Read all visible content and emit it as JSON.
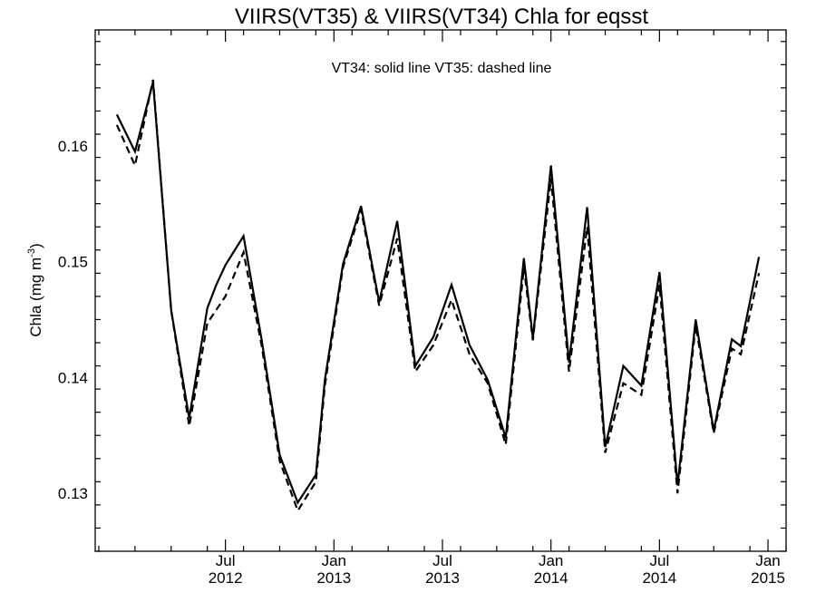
{
  "chart_data": {
    "type": "line",
    "title": "VIIRS(VT35) & VIIRS(VT34)  Chla for eqsst",
    "annotation": "VT34: solid line   VT35: dashed line",
    "ylabel_main": "Chla (mg m",
    "ylabel_sup": "-3",
    "ylabel_close": ")",
    "xlabel": "",
    "xlim": [
      "2012-01",
      "2015-03"
    ],
    "ylim": [
      0.125,
      0.17
    ],
    "yticks": [
      {
        "value": 0.13,
        "label": "0.13"
      },
      {
        "value": 0.14,
        "label": "0.14"
      },
      {
        "value": 0.15,
        "label": "0.15"
      },
      {
        "value": 0.16,
        "label": "0.16"
      }
    ],
    "xticks": [
      {
        "month_index": 6,
        "label1": "Jul",
        "label2": "2012"
      },
      {
        "month_index": 12,
        "label1": "Jan",
        "label2": "2013"
      },
      {
        "month_index": 18,
        "label1": "Jul",
        "label2": "2013"
      },
      {
        "month_index": 24,
        "label1": "Jan",
        "label2": "2014"
      },
      {
        "month_index": 30,
        "label1": "Jul",
        "label2": "2014"
      },
      {
        "month_index": 36,
        "label1": "Jan",
        "label2": "2015"
      }
    ],
    "grid": false,
    "series": [
      {
        "name": "VT34",
        "style": "solid",
        "color": "#000000",
        "points": [
          [
            0.0,
            0.1627
          ],
          [
            1.0,
            0.1595
          ],
          [
            2.0,
            0.1655
          ],
          [
            3.0,
            0.1458
          ],
          [
            4.0,
            0.1365
          ],
          [
            5.0,
            0.146
          ],
          [
            5.5,
            0.148
          ],
          [
            6.0,
            0.1497
          ],
          [
            7.0,
            0.1522
          ],
          [
            8.0,
            0.1433
          ],
          [
            9.0,
            0.1333
          ],
          [
            10.0,
            0.1292
          ],
          [
            11.0,
            0.1316
          ],
          [
            11.5,
            0.1398
          ],
          [
            12.5,
            0.1498
          ],
          [
            13.5,
            0.1548
          ],
          [
            14.5,
            0.1465
          ],
          [
            15.5,
            0.1535
          ],
          [
            16.5,
            0.141
          ],
          [
            17.5,
            0.1435
          ],
          [
            18.5,
            0.148
          ],
          [
            19.5,
            0.1428
          ],
          [
            20.5,
            0.1398
          ],
          [
            21.5,
            0.1348
          ],
          [
            22.5,
            0.1503
          ],
          [
            23.0,
            0.1434
          ],
          [
            24.0,
            0.1583
          ],
          [
            25.0,
            0.1413
          ],
          [
            26.0,
            0.1547
          ],
          [
            27.0,
            0.134
          ],
          [
            28.0,
            0.141
          ],
          [
            29.0,
            0.1393
          ],
          [
            30.0,
            0.1491
          ],
          [
            31.0,
            0.1307
          ],
          [
            32.0,
            0.145
          ],
          [
            33.0,
            0.1354
          ],
          [
            34.0,
            0.1433
          ],
          [
            34.5,
            0.1427
          ],
          [
            35.5,
            0.1504
          ]
        ]
      },
      {
        "name": "VT35",
        "style": "dashed",
        "color": "#000000",
        "points": [
          [
            0.0,
            0.1618
          ],
          [
            1.0,
            0.1583
          ],
          [
            2.0,
            0.1657
          ],
          [
            3.0,
            0.1458
          ],
          [
            4.0,
            0.1358
          ],
          [
            5.0,
            0.1447
          ],
          [
            6.0,
            0.147
          ],
          [
            7.0,
            0.1508
          ],
          [
            8.0,
            0.1428
          ],
          [
            9.0,
            0.1328
          ],
          [
            10.0,
            0.1285
          ],
          [
            11.0,
            0.131
          ],
          [
            11.5,
            0.1393
          ],
          [
            12.5,
            0.1495
          ],
          [
            13.5,
            0.1545
          ],
          [
            14.5,
            0.1462
          ],
          [
            15.5,
            0.152
          ],
          [
            16.5,
            0.1405
          ],
          [
            17.5,
            0.1428
          ],
          [
            18.5,
            0.1467
          ],
          [
            19.5,
            0.142
          ],
          [
            20.5,
            0.1395
          ],
          [
            21.5,
            0.1342
          ],
          [
            22.5,
            0.1495
          ],
          [
            23.0,
            0.1432
          ],
          [
            24.0,
            0.1572
          ],
          [
            25.0,
            0.1405
          ],
          [
            26.0,
            0.153
          ],
          [
            27.0,
            0.1335
          ],
          [
            28.0,
            0.1395
          ],
          [
            29.0,
            0.1385
          ],
          [
            30.0,
            0.148
          ],
          [
            31.0,
            0.13
          ],
          [
            32.0,
            0.1445
          ],
          [
            33.0,
            0.1352
          ],
          [
            34.0,
            0.1425
          ],
          [
            34.5,
            0.142
          ],
          [
            35.5,
            0.149
          ]
        ]
      }
    ]
  }
}
